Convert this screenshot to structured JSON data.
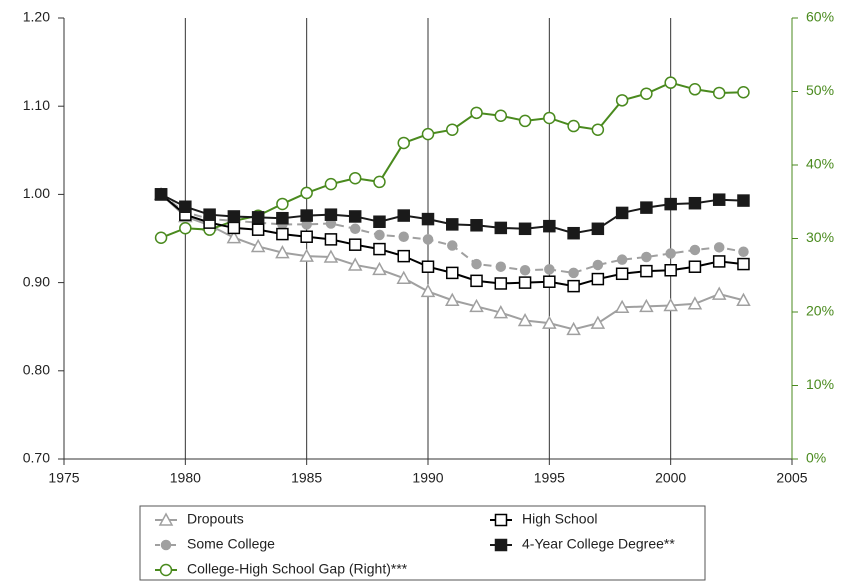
{
  "chart_data": {
    "type": "line",
    "x": [
      1979,
      1980,
      1981,
      1982,
      1983,
      1984,
      1985,
      1986,
      1987,
      1988,
      1989,
      1990,
      1991,
      1992,
      1993,
      1994,
      1995,
      1996,
      1997,
      1998,
      1999,
      2000,
      2001,
      2002,
      2003
    ],
    "xlim": [
      1975,
      2005
    ],
    "xticks": [
      1975,
      1980,
      1985,
      1990,
      1995,
      2000,
      2005
    ],
    "ylim": [
      0.7,
      1.2
    ],
    "yticks": [
      {
        "value": 0.7,
        "label": "0.70"
      },
      {
        "value": 0.8,
        "label": "0.80"
      },
      {
        "value": 0.9,
        "label": "0.90"
      },
      {
        "value": 1.0,
        "label": "1.00"
      },
      {
        "value": 1.1,
        "label": "1.10"
      },
      {
        "value": 1.2,
        "label": "1.20"
      }
    ],
    "y2lim": [
      0,
      60
    ],
    "y2ticks": [
      {
        "value": 0,
        "label": "0%"
      },
      {
        "value": 10,
        "label": "10%"
      },
      {
        "value": 20,
        "label": "20%"
      },
      {
        "value": 30,
        "label": "30%"
      },
      {
        "value": 40,
        "label": "40%"
      },
      {
        "value": 50,
        "label": "50%"
      },
      {
        "value": 60,
        "label": "60%"
      }
    ],
    "y2color": "#4a8a1e",
    "vgrid": true,
    "series": [
      {
        "name": "Dropouts",
        "color": "#a0a0a0",
        "marker": "triangle-open",
        "dashed": false,
        "values": [
          1.0,
          0.975,
          0.965,
          0.951,
          0.941,
          0.934,
          0.93,
          0.929,
          0.92,
          0.915,
          0.905,
          0.89,
          0.88,
          0.873,
          0.866,
          0.857,
          0.854,
          0.847,
          0.854,
          0.872,
          0.873,
          0.874,
          0.876,
          0.887,
          0.88
        ]
      },
      {
        "name": "Some College",
        "color": "#a0a0a0",
        "marker": "circle-filled",
        "dashed": true,
        "values": [
          1.0,
          0.98,
          0.972,
          0.97,
          0.968,
          0.966,
          0.966,
          0.967,
          0.961,
          0.954,
          0.952,
          0.949,
          0.942,
          0.921,
          0.918,
          0.914,
          0.915,
          0.911,
          0.92,
          0.926,
          0.929,
          0.933,
          0.937,
          0.94,
          0.935
        ]
      },
      {
        "name": "College-High School Gap (Right)***",
        "color": "#4a8a1e",
        "marker": "circle-open",
        "dashed": false,
        "axis": "y2",
        "values": [
          30.1,
          31.4,
          31.2,
          32.4,
          33.1,
          34.7,
          36.2,
          37.4,
          38.2,
          37.7,
          43.0,
          44.2,
          44.8,
          47.1,
          46.7,
          46.0,
          46.4,
          45.3,
          44.8,
          48.8,
          49.7,
          51.2,
          50.3,
          49.8,
          49.9
        ]
      },
      {
        "name": "High School",
        "color": "#000000",
        "marker": "square-open",
        "dashed": false,
        "values": [
          1.0,
          0.977,
          0.968,
          0.962,
          0.96,
          0.955,
          0.952,
          0.949,
          0.943,
          0.938,
          0.93,
          0.918,
          0.911,
          0.902,
          0.899,
          0.9,
          0.901,
          0.896,
          0.904,
          0.91,
          0.913,
          0.914,
          0.918,
          0.924,
          0.921
        ]
      },
      {
        "name": "4-Year College Degree**",
        "color": "#1a1a1a",
        "marker": "square-filled",
        "dashed": false,
        "values": [
          1.0,
          0.986,
          0.977,
          0.975,
          0.974,
          0.973,
          0.976,
          0.977,
          0.975,
          0.969,
          0.976,
          0.972,
          0.966,
          0.965,
          0.962,
          0.961,
          0.964,
          0.956,
          0.961,
          0.979,
          0.985,
          0.989,
          0.99,
          0.994,
          0.993
        ]
      }
    ]
  }
}
